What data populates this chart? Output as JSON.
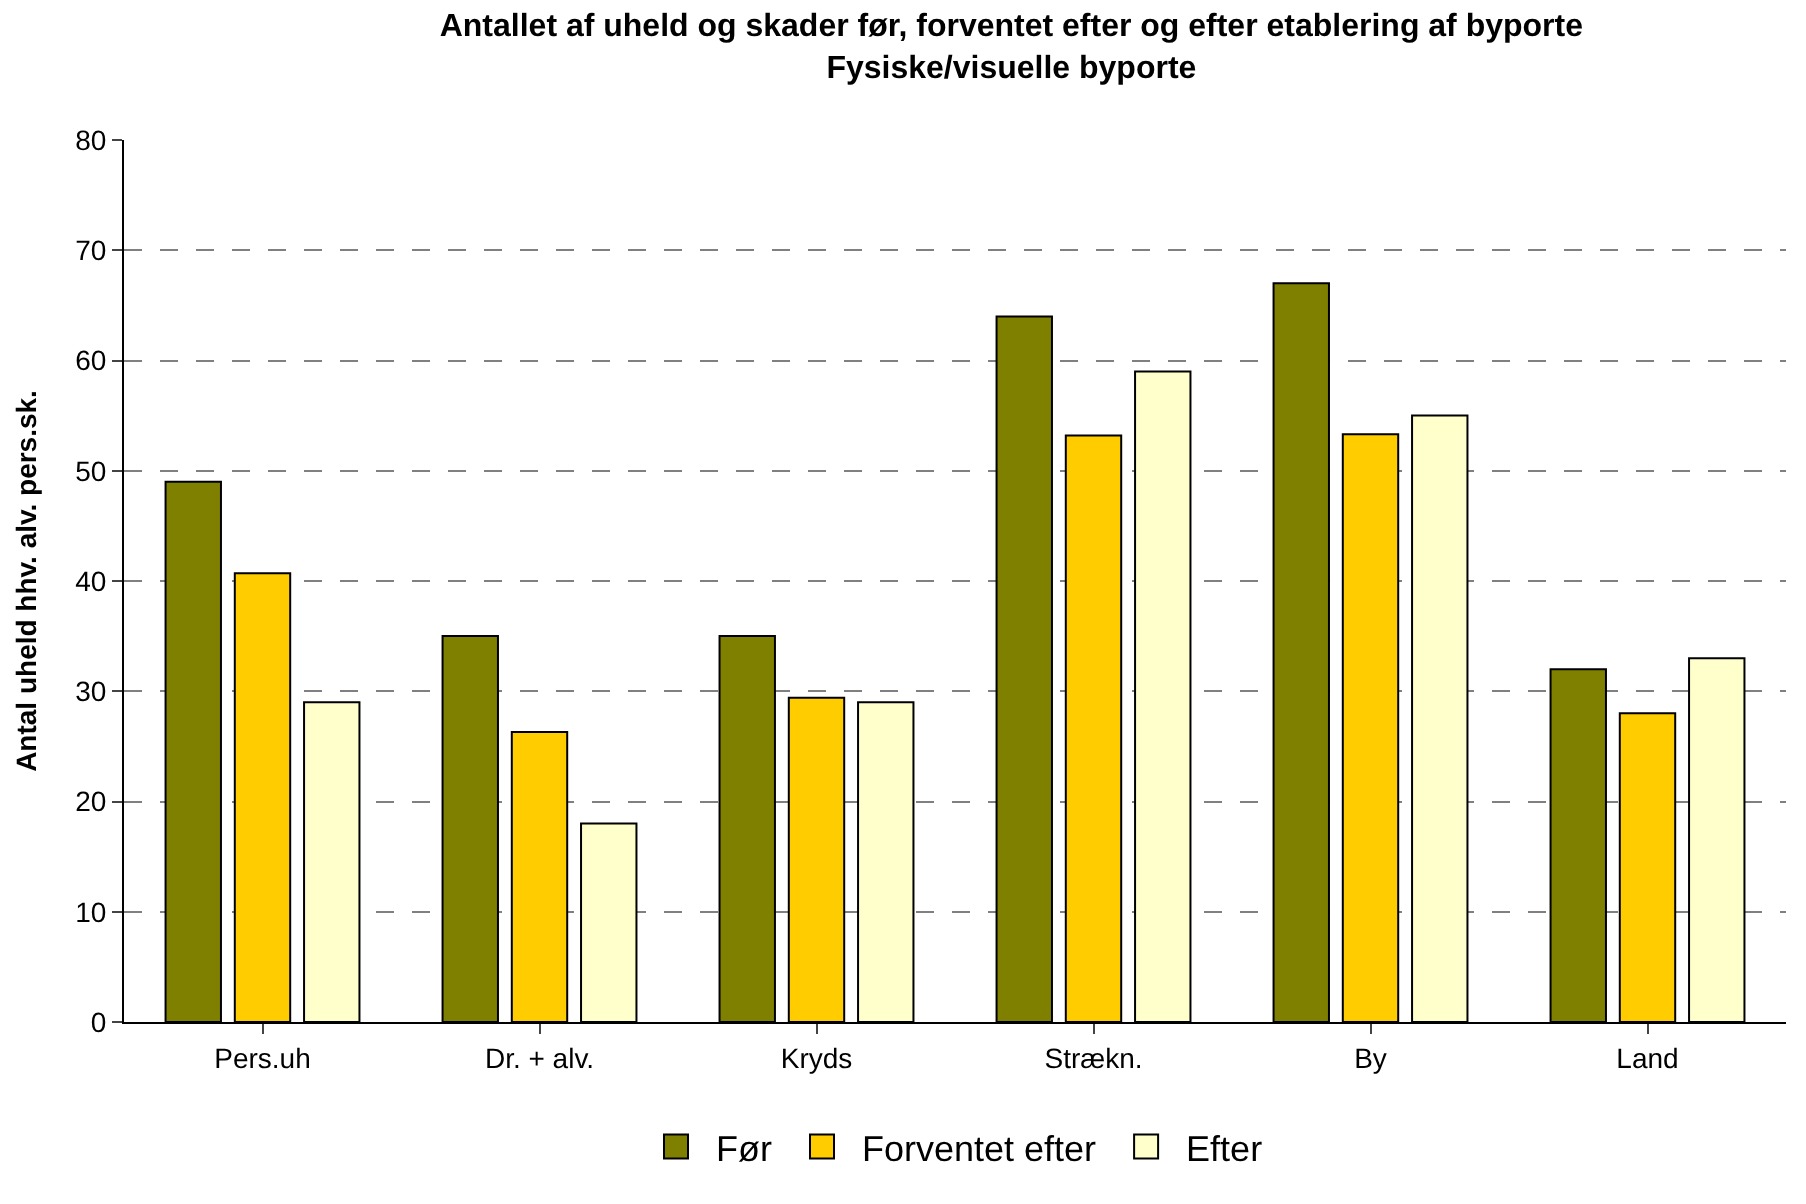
{
  "chart_data": {
    "type": "bar",
    "title": "Antallet af uheld og skader før, forventet efter og efter etablering af byporte",
    "subtitle": "Fysiske/visuelle byporte",
    "ylabel": "Antal uheld hhv. alv. pers.sk.",
    "categories": [
      "Pers.uh",
      "Dr. + alv.",
      "Kryds",
      "Strækn.",
      "By",
      "Land"
    ],
    "series": [
      {
        "name": "Før",
        "color": "#808000",
        "values": [
          49,
          35,
          35,
          64,
          67,
          32
        ]
      },
      {
        "name": "Forventet efter",
        "color": "#ffcc00",
        "values": [
          40.7,
          26.3,
          29.4,
          53.2,
          53.3,
          28
        ]
      },
      {
        "name": "Efter",
        "color": "#ffffcc",
        "values": [
          29,
          18,
          29,
          59,
          55,
          33
        ]
      }
    ],
    "ylim": [
      0,
      80
    ],
    "yticks": [
      0,
      10,
      20,
      30,
      40,
      50,
      60,
      70,
      80
    ],
    "grid": "y",
    "legend": "bottom"
  }
}
